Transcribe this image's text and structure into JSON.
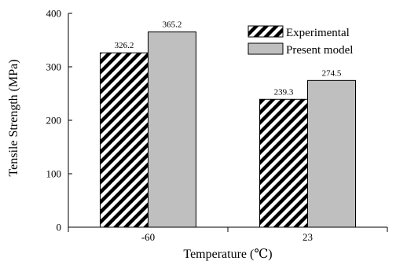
{
  "chart_data": {
    "type": "bar",
    "categories": [
      "-60",
      "23"
    ],
    "series": [
      {
        "name": "Experimental",
        "values": [
          326.2,
          239.3
        ],
        "pattern": "diagonal-hatch",
        "color": "#000000"
      },
      {
        "name": "Present model",
        "values": [
          365.2,
          274.5
        ],
        "pattern": "solid",
        "color": "#bfbfbf"
      }
    ],
    "value_labels": [
      [
        "326.2",
        "239.3"
      ],
      [
        "365.2",
        "274.5"
      ]
    ],
    "ylabel": "Tensile Strength (MPa)",
    "xlabel": "Temperature (℃)",
    "ylim": [
      0,
      400
    ],
    "yticks": [
      0,
      100,
      200,
      300,
      400
    ],
    "grid": false,
    "legend_position": "top-right"
  }
}
